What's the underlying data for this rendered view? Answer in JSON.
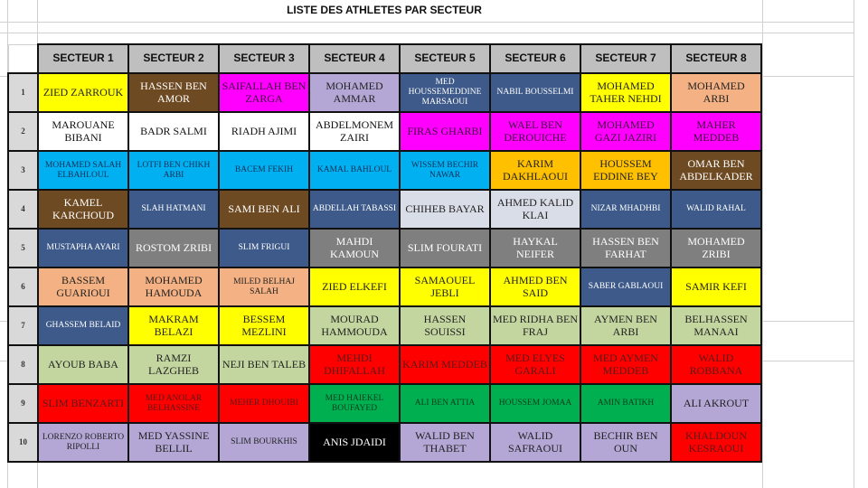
{
  "title": "LISTE DES ATHLETES PAR SECTEUR",
  "headers": [
    "SECTEUR 1",
    "SECTEUR 2",
    "SECTEUR 3",
    "SECTEUR 4",
    "SECTEUR 5",
    "SECTEUR 6",
    "SECTEUR 7",
    "SECTEUR 8"
  ],
  "colors": {
    "yellow": "#ffff00",
    "brown": "#6e4a22",
    "magenta": "#ff00ff",
    "lavender": "#b4a7d6",
    "navy": "#3d5a8a",
    "peach": "#f4b183",
    "white": "#ffffff",
    "cyan": "#00b0f0",
    "orange": "#ffc000",
    "light-gray": "#d9dde8",
    "gray": "#7f7f7f",
    "sage": "#c4d6a0",
    "red": "#ff0000",
    "green": "#00b050",
    "black": "#000000"
  },
  "rows": [
    {
      "num": "1",
      "cells": [
        {
          "text": "ZIED ZARROUK",
          "color": "yellow"
        },
        {
          "text": "HASSEN BEN AMOR",
          "color": "brown"
        },
        {
          "text": "SAIFALLAH BEN ZARGA",
          "color": "magenta"
        },
        {
          "text": "MOHAMED AMMAR",
          "color": "lavender"
        },
        {
          "text": "MED HOUSSEMEDDINE MARSAOUI",
          "color": "navy",
          "small": true
        },
        {
          "text": "NABIL BOUSSELMI",
          "color": "navy",
          "small": true
        },
        {
          "text": "MOHAMED TAHER NEHDI",
          "color": "yellow"
        },
        {
          "text": "MOHAMED ARBI",
          "color": "peach"
        }
      ]
    },
    {
      "num": "2",
      "cells": [
        {
          "text": "MAROUANE BIBANI",
          "color": "white"
        },
        {
          "text": "BADR SALMI",
          "color": "white"
        },
        {
          "text": "RIADH AJIMI",
          "color": "white"
        },
        {
          "text": "ABDELMONEM ZAIRI",
          "color": "white"
        },
        {
          "text": "FIRAS GHARBI",
          "color": "magenta"
        },
        {
          "text": "WAEL BEN DEROUICHE",
          "color": "magenta"
        },
        {
          "text": "MOHAMED GAZI JAZIRI",
          "color": "magenta"
        },
        {
          "text": "MAHER MEDDEB",
          "color": "magenta"
        }
      ]
    },
    {
      "num": "3",
      "cells": [
        {
          "text": "MOHAMED SALAH ELBAHLOUL",
          "color": "cyan",
          "small": true
        },
        {
          "text": "LOTFI BEN CHIKH ARBI",
          "color": "cyan",
          "small": true
        },
        {
          "text": "BACEM FEKIH",
          "color": "cyan",
          "small": true
        },
        {
          "text": "KAMAL BAHLOUL",
          "color": "cyan",
          "small": true
        },
        {
          "text": "WISSEM BECHIR NAWAR",
          "color": "cyan",
          "small": true
        },
        {
          "text": "KARIM DAKHLAOUI",
          "color": "orange"
        },
        {
          "text": "HOUSSEM EDDINE BEY",
          "color": "orange"
        },
        {
          "text": "OMAR BEN ABDELKADER",
          "color": "brown"
        }
      ]
    },
    {
      "num": "4",
      "cells": [
        {
          "text": "KAMEL KARCHOUD",
          "color": "brown"
        },
        {
          "text": "SLAH HATMANI",
          "color": "navy",
          "small": true
        },
        {
          "text": "SAMI BEN ALI",
          "color": "brown"
        },
        {
          "text": "ABDELLAH TABASSI",
          "color": "navy",
          "small": true
        },
        {
          "text": "CHIHEB BAYAR",
          "color": "light-gray"
        },
        {
          "text": "AHMED KALID KLAI",
          "color": "light-gray"
        },
        {
          "text": "NIZAR MHADHBI",
          "color": "navy",
          "small": true
        },
        {
          "text": "WALID RAHAL",
          "color": "navy",
          "small": true
        }
      ]
    },
    {
      "num": "5",
      "cells": [
        {
          "text": "MUSTAPHA AYARI",
          "color": "navy",
          "small": true
        },
        {
          "text": "ROSTOM ZRIBI",
          "color": "gray"
        },
        {
          "text": "SLIM FRIGUI",
          "color": "navy",
          "small": true
        },
        {
          "text": "MAHDI KAMOUN",
          "color": "gray"
        },
        {
          "text": "SLIM FOURATI",
          "color": "gray"
        },
        {
          "text": "HAYKAL NEIFER",
          "color": "gray"
        },
        {
          "text": "HASSEN BEN FARHAT",
          "color": "gray"
        },
        {
          "text": "MOHAMED ZRIBI",
          "color": "gray"
        }
      ]
    },
    {
      "num": "6",
      "cells": [
        {
          "text": "BASSEM GUARIOUI",
          "color": "peach"
        },
        {
          "text": "MOHAMED HAMOUDA",
          "color": "peach"
        },
        {
          "text": "MILED BELHAJ SALAH",
          "color": "peach",
          "small": true
        },
        {
          "text": "ZIED ELKEFI",
          "color": "yellow"
        },
        {
          "text": "SAMAOUEL JEBLI",
          "color": "yellow"
        },
        {
          "text": "AHMED BEN SAID",
          "color": "yellow"
        },
        {
          "text": "SABER GABLAOUI",
          "color": "navy",
          "small": true
        },
        {
          "text": "SAMIR KEFI",
          "color": "yellow"
        }
      ]
    },
    {
      "num": "7",
      "cells": [
        {
          "text": "GHASSEM BELAID",
          "color": "navy",
          "small": true
        },
        {
          "text": "MAKRAM BELAZI",
          "color": "yellow"
        },
        {
          "text": "BESSEM MEZLINI",
          "color": "yellow"
        },
        {
          "text": "MOURAD HAMMOUDA",
          "color": "sage"
        },
        {
          "text": "HASSEN SOUISSI",
          "color": "sage"
        },
        {
          "text": "MED RIDHA BEN FRAJ",
          "color": "sage"
        },
        {
          "text": "AYMEN BEN ARBI",
          "color": "sage"
        },
        {
          "text": "BELHASSEN MANAAI",
          "color": "sage"
        }
      ]
    },
    {
      "num": "8",
      "cells": [
        {
          "text": "AYOUB BABA",
          "color": "sage"
        },
        {
          "text": "RAMZI LAZGHEB",
          "color": "sage"
        },
        {
          "text": "NEJI BEN TALEB",
          "color": "sage"
        },
        {
          "text": "MEHDI DHIFALLAH",
          "color": "red"
        },
        {
          "text": "KARIM MEDDEB",
          "color": "red"
        },
        {
          "text": "MED ELYES GARALI",
          "color": "red"
        },
        {
          "text": "MED AYMEN MEDDEB",
          "color": "red"
        },
        {
          "text": "WALID ROBBANA",
          "color": "red"
        }
      ]
    },
    {
      "num": "9",
      "cells": [
        {
          "text": "SLIM BENZARTI",
          "color": "red"
        },
        {
          "text": "MED ANOLAR BELHASSINE",
          "color": "red",
          "small": true
        },
        {
          "text": "MEHER DHOUIBI",
          "color": "red",
          "small": true
        },
        {
          "text": "MED HAIEKEL BOUFAYED",
          "color": "green",
          "small": true
        },
        {
          "text": "ALI BEN ATTIA",
          "color": "green",
          "small": true
        },
        {
          "text": "HOUSSEM JOMAA",
          "color": "green",
          "small": true
        },
        {
          "text": "AMIN BATIKH",
          "color": "green",
          "small": true
        },
        {
          "text": "ALI AKROUT",
          "color": "lavender"
        }
      ]
    },
    {
      "num": "10",
      "cells": [
        {
          "text": "LORENZO ROBERTO RIPOLLI",
          "color": "lavender",
          "small": true
        },
        {
          "text": "MED YASSINE BELLIL",
          "color": "lavender"
        },
        {
          "text": "SLIM BOURKHIS",
          "color": "lavender",
          "small": true
        },
        {
          "text": "ANIS JDAIDI",
          "color": "black"
        },
        {
          "text": "WALID BEN THABET",
          "color": "lavender"
        },
        {
          "text": "WALID SAFRAOUI",
          "color": "lavender"
        },
        {
          "text": "BECHIR BEN OUN",
          "color": "lavender"
        },
        {
          "text": "KHALDOUN KESRAOUI",
          "color": "red"
        }
      ]
    }
  ]
}
